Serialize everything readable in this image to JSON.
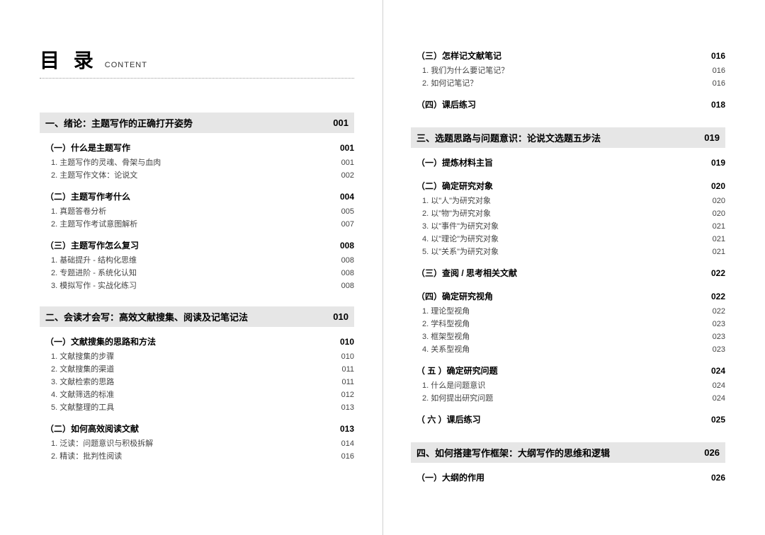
{
  "title": {
    "main": "目 录",
    "sub": "CONTENT"
  },
  "chapters": [
    {
      "title": "一、绪论：主题写作的正确打开姿势",
      "page": "001",
      "sections": [
        {
          "title": "（一）什么是主题写作",
          "page": "001",
          "items": [
            {
              "title": "1. 主题写作的灵魂、骨架与血肉",
              "page": "001"
            },
            {
              "title": "2. 主题写作文体：论说文",
              "page": "002"
            }
          ]
        },
        {
          "title": "（二）主题写作考什么",
          "page": "004",
          "items": [
            {
              "title": "1. 真题答卷分析",
              "page": "005"
            },
            {
              "title": "2. 主题写作考试意图解析",
              "page": "007"
            }
          ]
        },
        {
          "title": "（三）主题写作怎么复习",
          "page": "008",
          "items": [
            {
              "title": "1. 基础提升 - 结构化思维",
              "page": "008"
            },
            {
              "title": "2. 专题进阶 - 系统化认知",
              "page": "008"
            },
            {
              "title": "3. 模拟写作 - 实战化练习",
              "page": "008"
            }
          ]
        }
      ]
    },
    {
      "title": "二、会读才会写：高效文献搜集、阅读及记笔记法",
      "page": "010",
      "sections": [
        {
          "title": "（一）文献搜集的思路和方法",
          "page": "010",
          "items": [
            {
              "title": "1. 文献搜集的步骤",
              "page": "010"
            },
            {
              "title": "2. 文献搜集的渠道",
              "page": "011"
            },
            {
              "title": "3. 文献检索的思路",
              "page": "011"
            },
            {
              "title": "4. 文献筛选的标准",
              "page": "012"
            },
            {
              "title": "5. 文献整理的工具",
              "page": "013"
            }
          ]
        },
        {
          "title": "（二）如何高效阅读文献",
          "page": "013",
          "items": [
            {
              "title": "1. 泛读：问题意识与积极拆解",
              "page": "014"
            },
            {
              "title": "2. 精读：批判性阅读",
              "page": "016"
            }
          ]
        },
        {
          "title": "（三）怎样记文献笔记",
          "page": "016",
          "items": [
            {
              "title": "1. 我们为什么要记笔记？",
              "page": "016"
            },
            {
              "title": "2. 如何记笔记？",
              "page": "016"
            }
          ]
        },
        {
          "title": "（四）课后练习",
          "page": "018",
          "items": []
        }
      ]
    },
    {
      "title": "三、选题思路与问题意识：论说文选题五步法",
      "page": "019",
      "sections": [
        {
          "title": "（一）提炼材料主旨",
          "page": "019",
          "items": []
        },
        {
          "title": "（二）确定研究对象",
          "page": "020",
          "items": [
            {
              "title": "1. 以\"人\"为研究对象",
              "page": "020"
            },
            {
              "title": "2. 以\"物\"为研究对象",
              "page": "020"
            },
            {
              "title": "3. 以\"事件\"为研究对象",
              "page": "021"
            },
            {
              "title": "4. 以\"理论\"为研究对象",
              "page": "021"
            },
            {
              "title": "5. 以\"关系\"为研究对象",
              "page": "021"
            }
          ]
        },
        {
          "title": "（三）查阅 / 思考相关文献",
          "page": "022",
          "items": []
        },
        {
          "title": "（四）确定研究视角",
          "page": "022",
          "items": [
            {
              "title": "1. 理论型视角",
              "page": "022"
            },
            {
              "title": "2. 学科型视角",
              "page": "023"
            },
            {
              "title": "3. 框架型视角",
              "page": "023"
            },
            {
              "title": "4. 关系型视角",
              "page": "023"
            }
          ]
        },
        {
          "title": "（ 五 ）确定研究问题",
          "page": "024",
          "items": [
            {
              "title": "1. 什么是问题意识",
              "page": "024"
            },
            {
              "title": "2. 如何提出研究问题",
              "page": "024"
            }
          ]
        },
        {
          "title": "（ 六 ）课后练习",
          "page": "025",
          "items": []
        }
      ]
    },
    {
      "title": "四、如何搭建写作框架：大纲写作的思维和逻辑",
      "page": "026",
      "sections": [
        {
          "title": "（一）大纲的作用",
          "page": "026",
          "items": []
        }
      ]
    }
  ],
  "colors": {
    "chapter_bg": "#e6e6e6",
    "text_main": "#000000",
    "text_item": "#444444",
    "divider": "#d0d0d0"
  }
}
